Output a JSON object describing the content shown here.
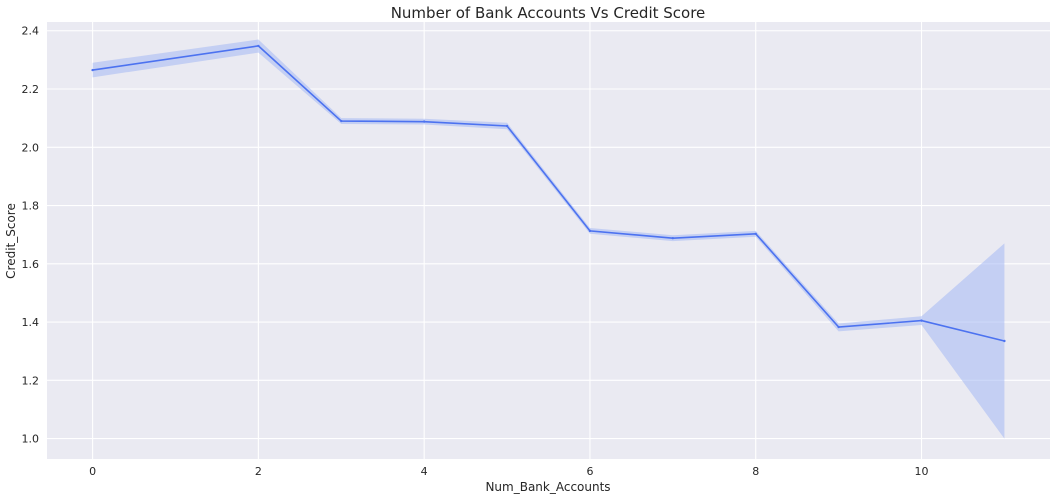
{
  "chart_data": {
    "type": "line",
    "title": "Number of Bank Accounts Vs Credit Score",
    "xlabel": "Num_Bank_Accounts",
    "ylabel": "Credit_Score",
    "xlim": [
      -0.55,
      11.55
    ],
    "ylim": [
      0.93,
      2.43
    ],
    "xticks": [
      0,
      2,
      4,
      6,
      8,
      10
    ],
    "yticks": [
      1.0,
      1.2,
      1.4,
      1.6,
      1.8,
      2.0,
      2.2,
      2.4
    ],
    "ytick_labels": [
      "1.0",
      "1.2",
      "1.4",
      "1.6",
      "1.8",
      "2.0",
      "2.2",
      "2.4"
    ],
    "grid": true,
    "series": [
      {
        "x": [
          0,
          2,
          3,
          4,
          5,
          6,
          7,
          8,
          9,
          10,
          11
        ],
        "values": [
          2.265,
          2.348,
          2.09,
          2.088,
          2.073,
          1.713,
          1.688,
          1.703,
          1.383,
          1.405,
          1.335
        ],
        "ci_low": [
          2.24,
          2.325,
          2.08,
          2.078,
          2.062,
          1.703,
          1.678,
          1.693,
          1.368,
          1.39,
          1.0
        ],
        "ci_high": [
          2.29,
          2.37,
          2.1,
          2.098,
          2.084,
          1.723,
          1.698,
          1.713,
          1.395,
          1.42,
          1.67
        ]
      }
    ],
    "colors": {
      "line": "#4c72f0",
      "band": "#a4b8f4",
      "background": "#eaeaf2",
      "grid": "#ffffff"
    }
  }
}
